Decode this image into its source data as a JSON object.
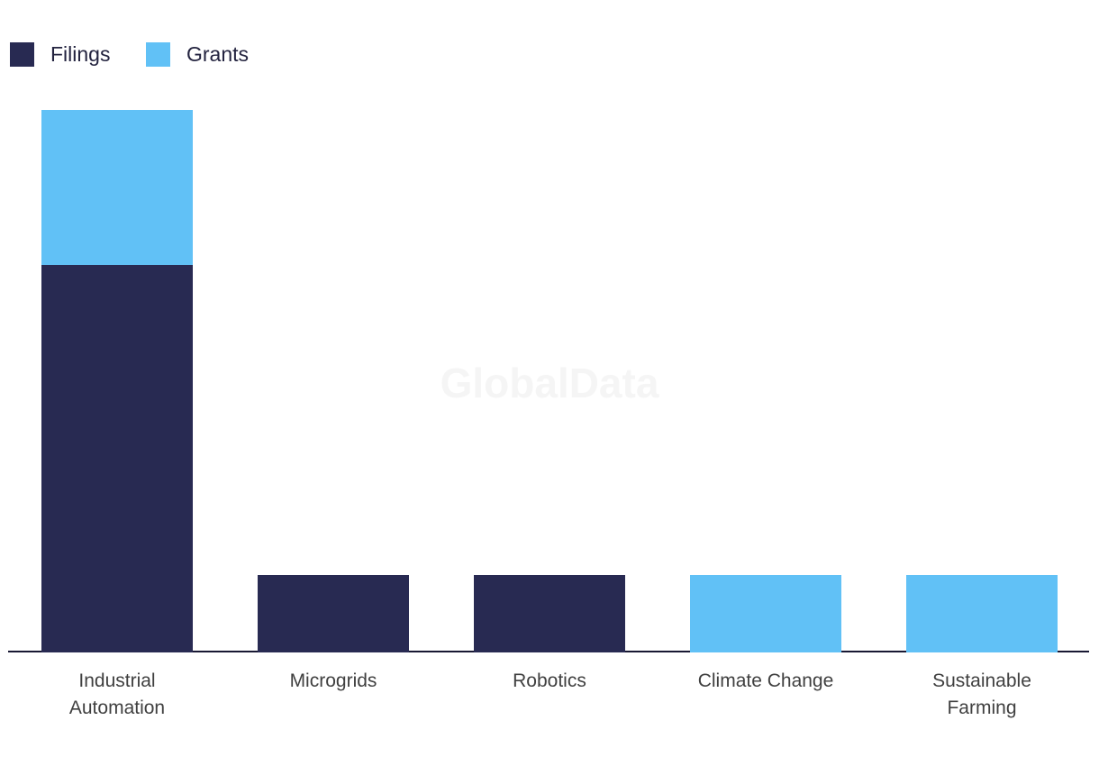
{
  "watermark": "GlobalData",
  "legend": [
    {
      "label": "Filings",
      "color": "#282a52"
    },
    {
      "label": "Grants",
      "color": "#61c1f6"
    }
  ],
  "chart_data": {
    "type": "bar",
    "stacked": true,
    "title": "",
    "xlabel": "",
    "ylabel": "",
    "categories": [
      "Industrial Automation",
      "Microgrids",
      "Robotics",
      "Climate Change",
      "Sustainable Farming"
    ],
    "series": [
      {
        "name": "Filings",
        "color": "#282a52",
        "values": [
          5,
          1,
          1,
          0,
          0
        ]
      },
      {
        "name": "Grants",
        "color": "#61c1f6",
        "values": [
          2,
          0,
          0,
          1,
          1
        ]
      }
    ],
    "ylim": [
      0,
      7
    ],
    "grid": false,
    "y_axis_visible": false,
    "legend_position": "top-left",
    "axis_line_color": "#181833",
    "label_color": "#404040",
    "watermark_color": "#f5f5f5"
  }
}
